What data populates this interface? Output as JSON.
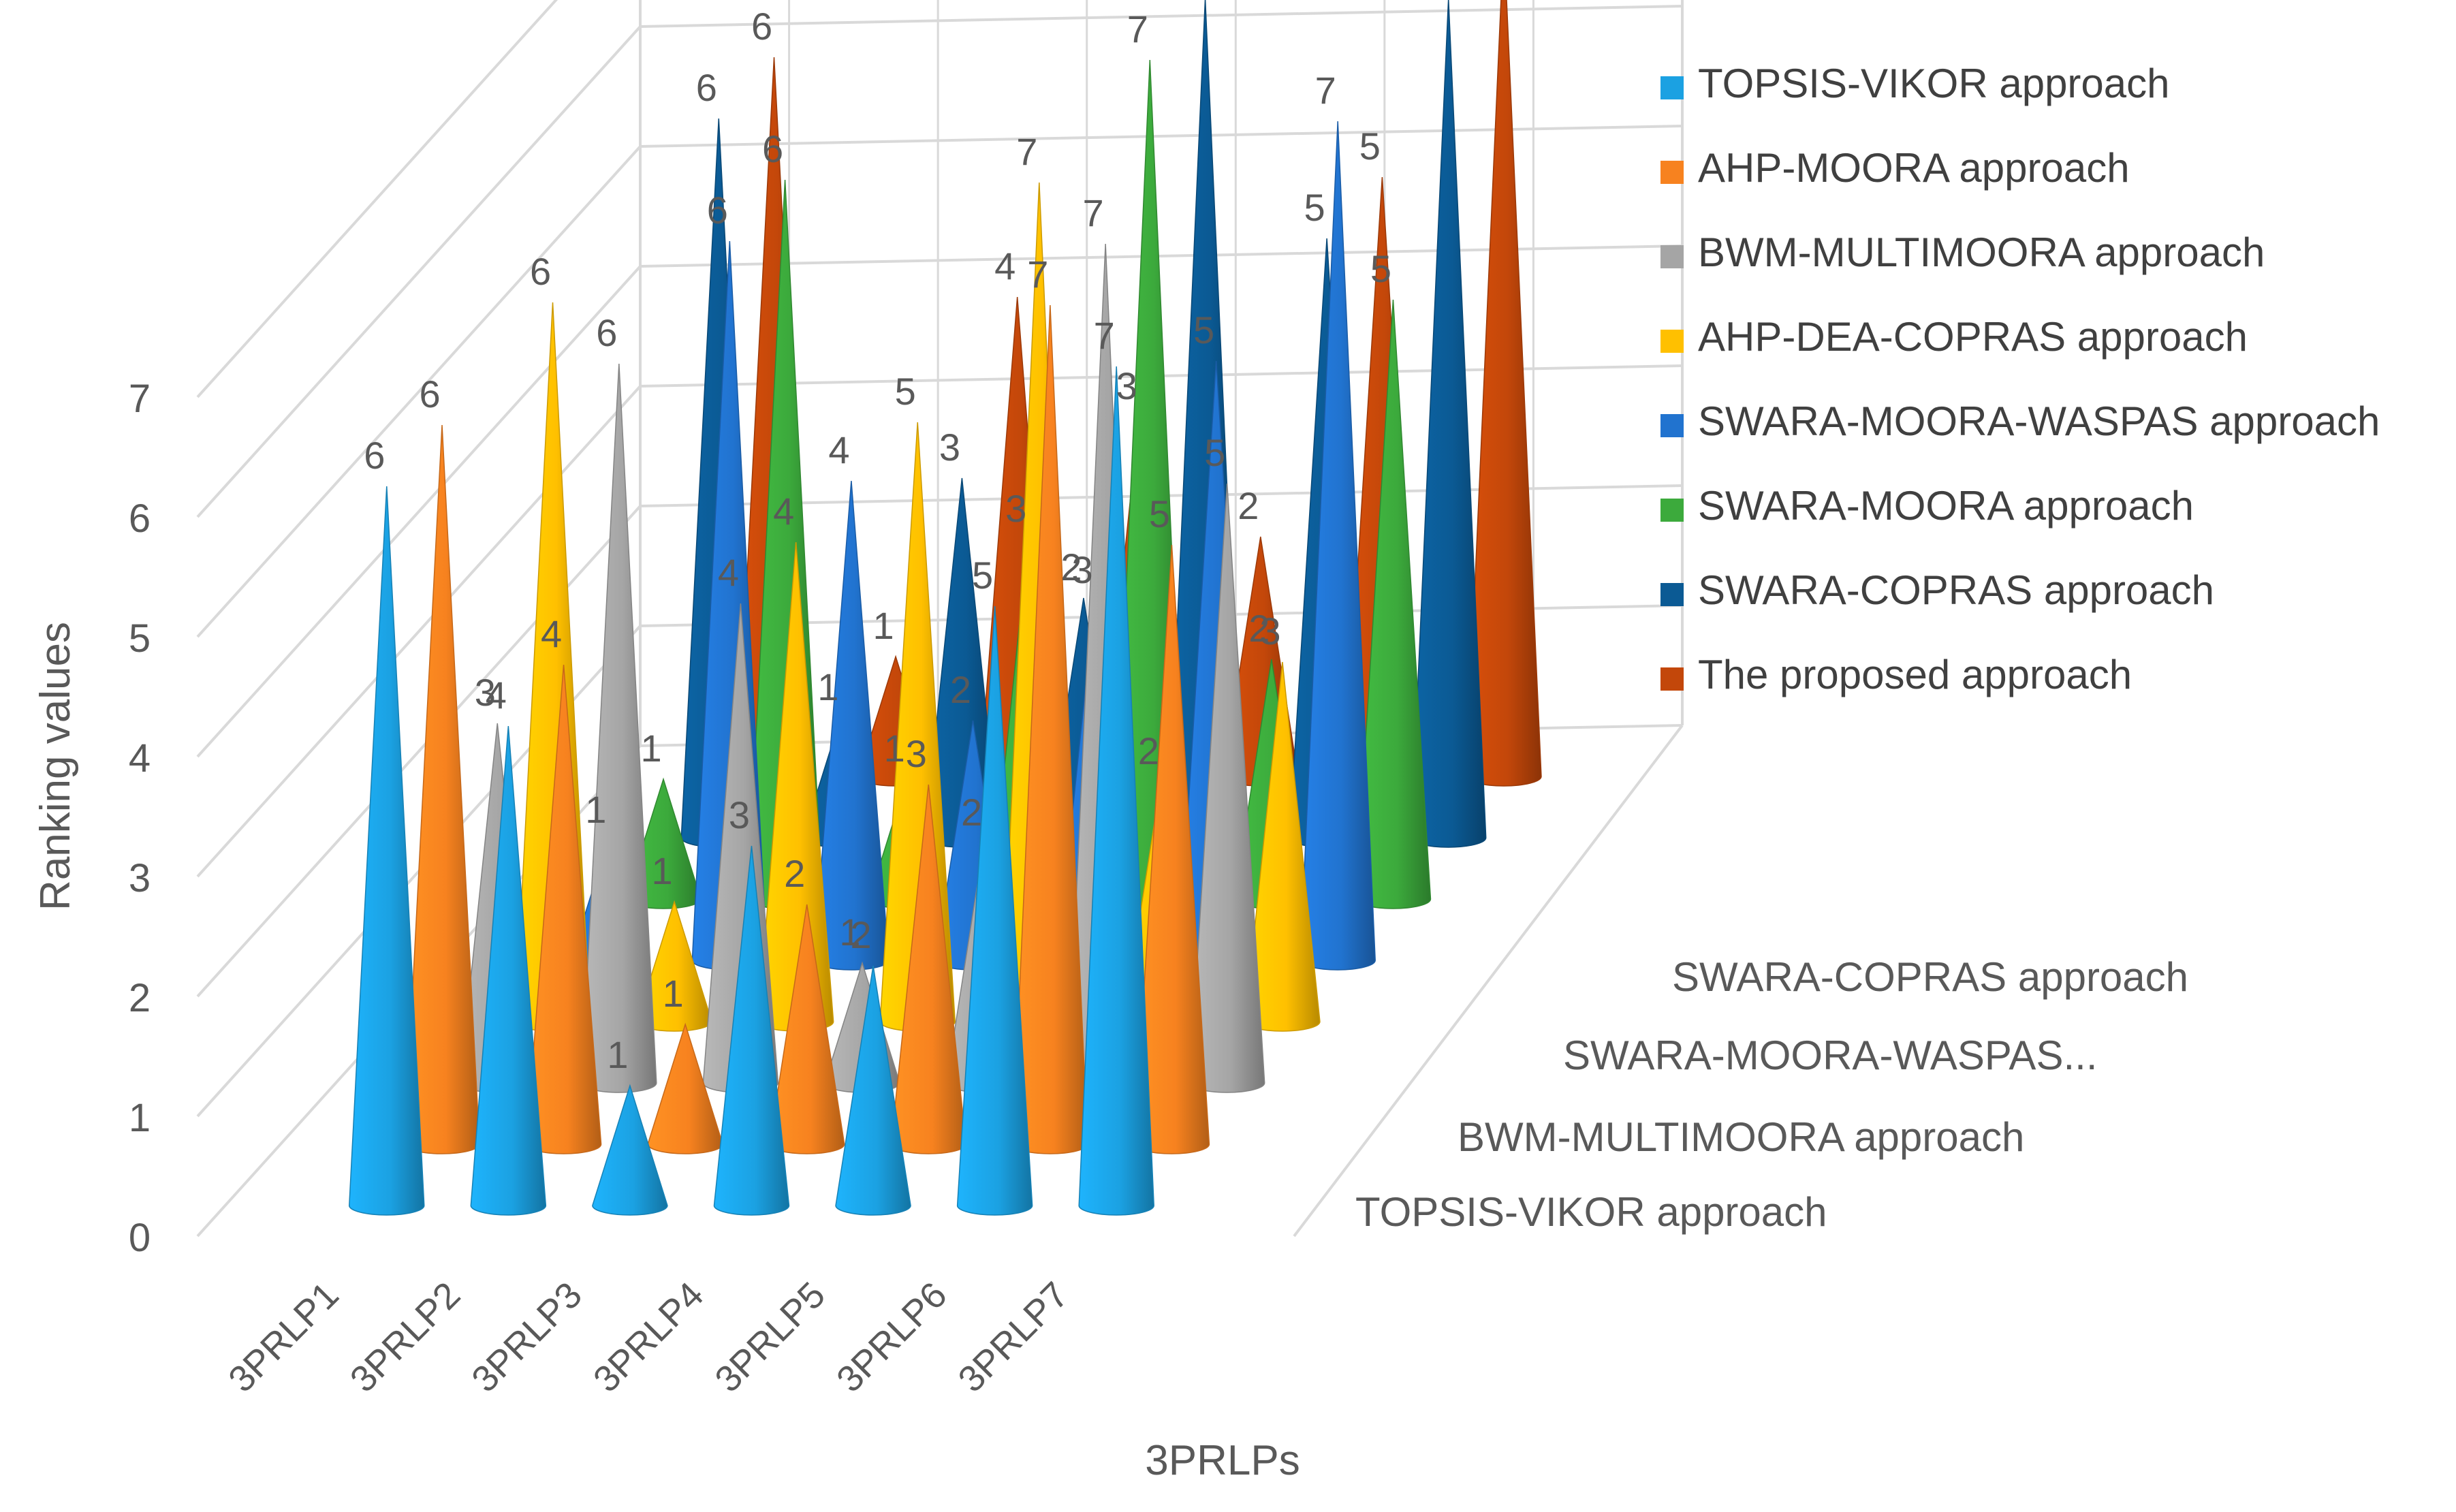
{
  "chart_data": {
    "type": "bar",
    "variant": "3d-cone",
    "title": "",
    "xlabel": "3PRLPs",
    "ylabel": "Ranking values",
    "ylim": [
      0,
      7
    ],
    "yticks": [
      "0",
      "1",
      "2",
      "3",
      "4",
      "5",
      "6",
      "7"
    ],
    "grid": true,
    "legend_position": "top-right",
    "categories": [
      "3PRLP1",
      "3PRLP2",
      "3PRLP3",
      "3PRLP4",
      "3PRLP5",
      "3PRLP6",
      "3PRLP7"
    ],
    "depth_labels": [
      "TOPSIS-VIKOR approach",
      "BWM-MULTIMOORA approach",
      "SWARA-MOORA-WASPAS...",
      "SWARA-COPRAS approach"
    ],
    "series": [
      {
        "name": "TOPSIS-VIKOR approach",
        "color": "#1BA1E2",
        "values": [
          6,
          4,
          1,
          3,
          2,
          5,
          7
        ]
      },
      {
        "name": "AHP-MOORA approach",
        "color": "#F7821F",
        "values": [
          6,
          4,
          1,
          2,
          3,
          7,
          5
        ]
      },
      {
        "name": "BWM-MULTIMOORA approach",
        "color": "#A5A5A5",
        "values": [
          3,
          6,
          4,
          1,
          2,
          7,
          5
        ]
      },
      {
        "name": "AHP-DEA-COPRAS approach",
        "color": "#FFC000",
        "values": [
          6,
          1,
          4,
          5,
          7,
          2,
          3
        ]
      },
      {
        "name": "SWARA-MOORA-WASPAS approach",
        "color": "#2173CF",
        "values": [
          1,
          6,
          4,
          2,
          3,
          5,
          7
        ]
      },
      {
        "name": "SWARA-MOORA approach",
        "color": "#3CAA3C",
        "values": [
          1,
          6,
          1,
          3,
          7,
          2,
          5
        ]
      },
      {
        "name": "SWARA-COPRAS approach",
        "color": "#0B5A94",
        "values": [
          6,
          1,
          3,
          2,
          7,
          5,
          7
        ]
      },
      {
        "name": "The proposed approach",
        "color": "#C3470A",
        "values": [
          6,
          1,
          4,
          3,
          2,
          5,
          7
        ]
      }
    ]
  }
}
